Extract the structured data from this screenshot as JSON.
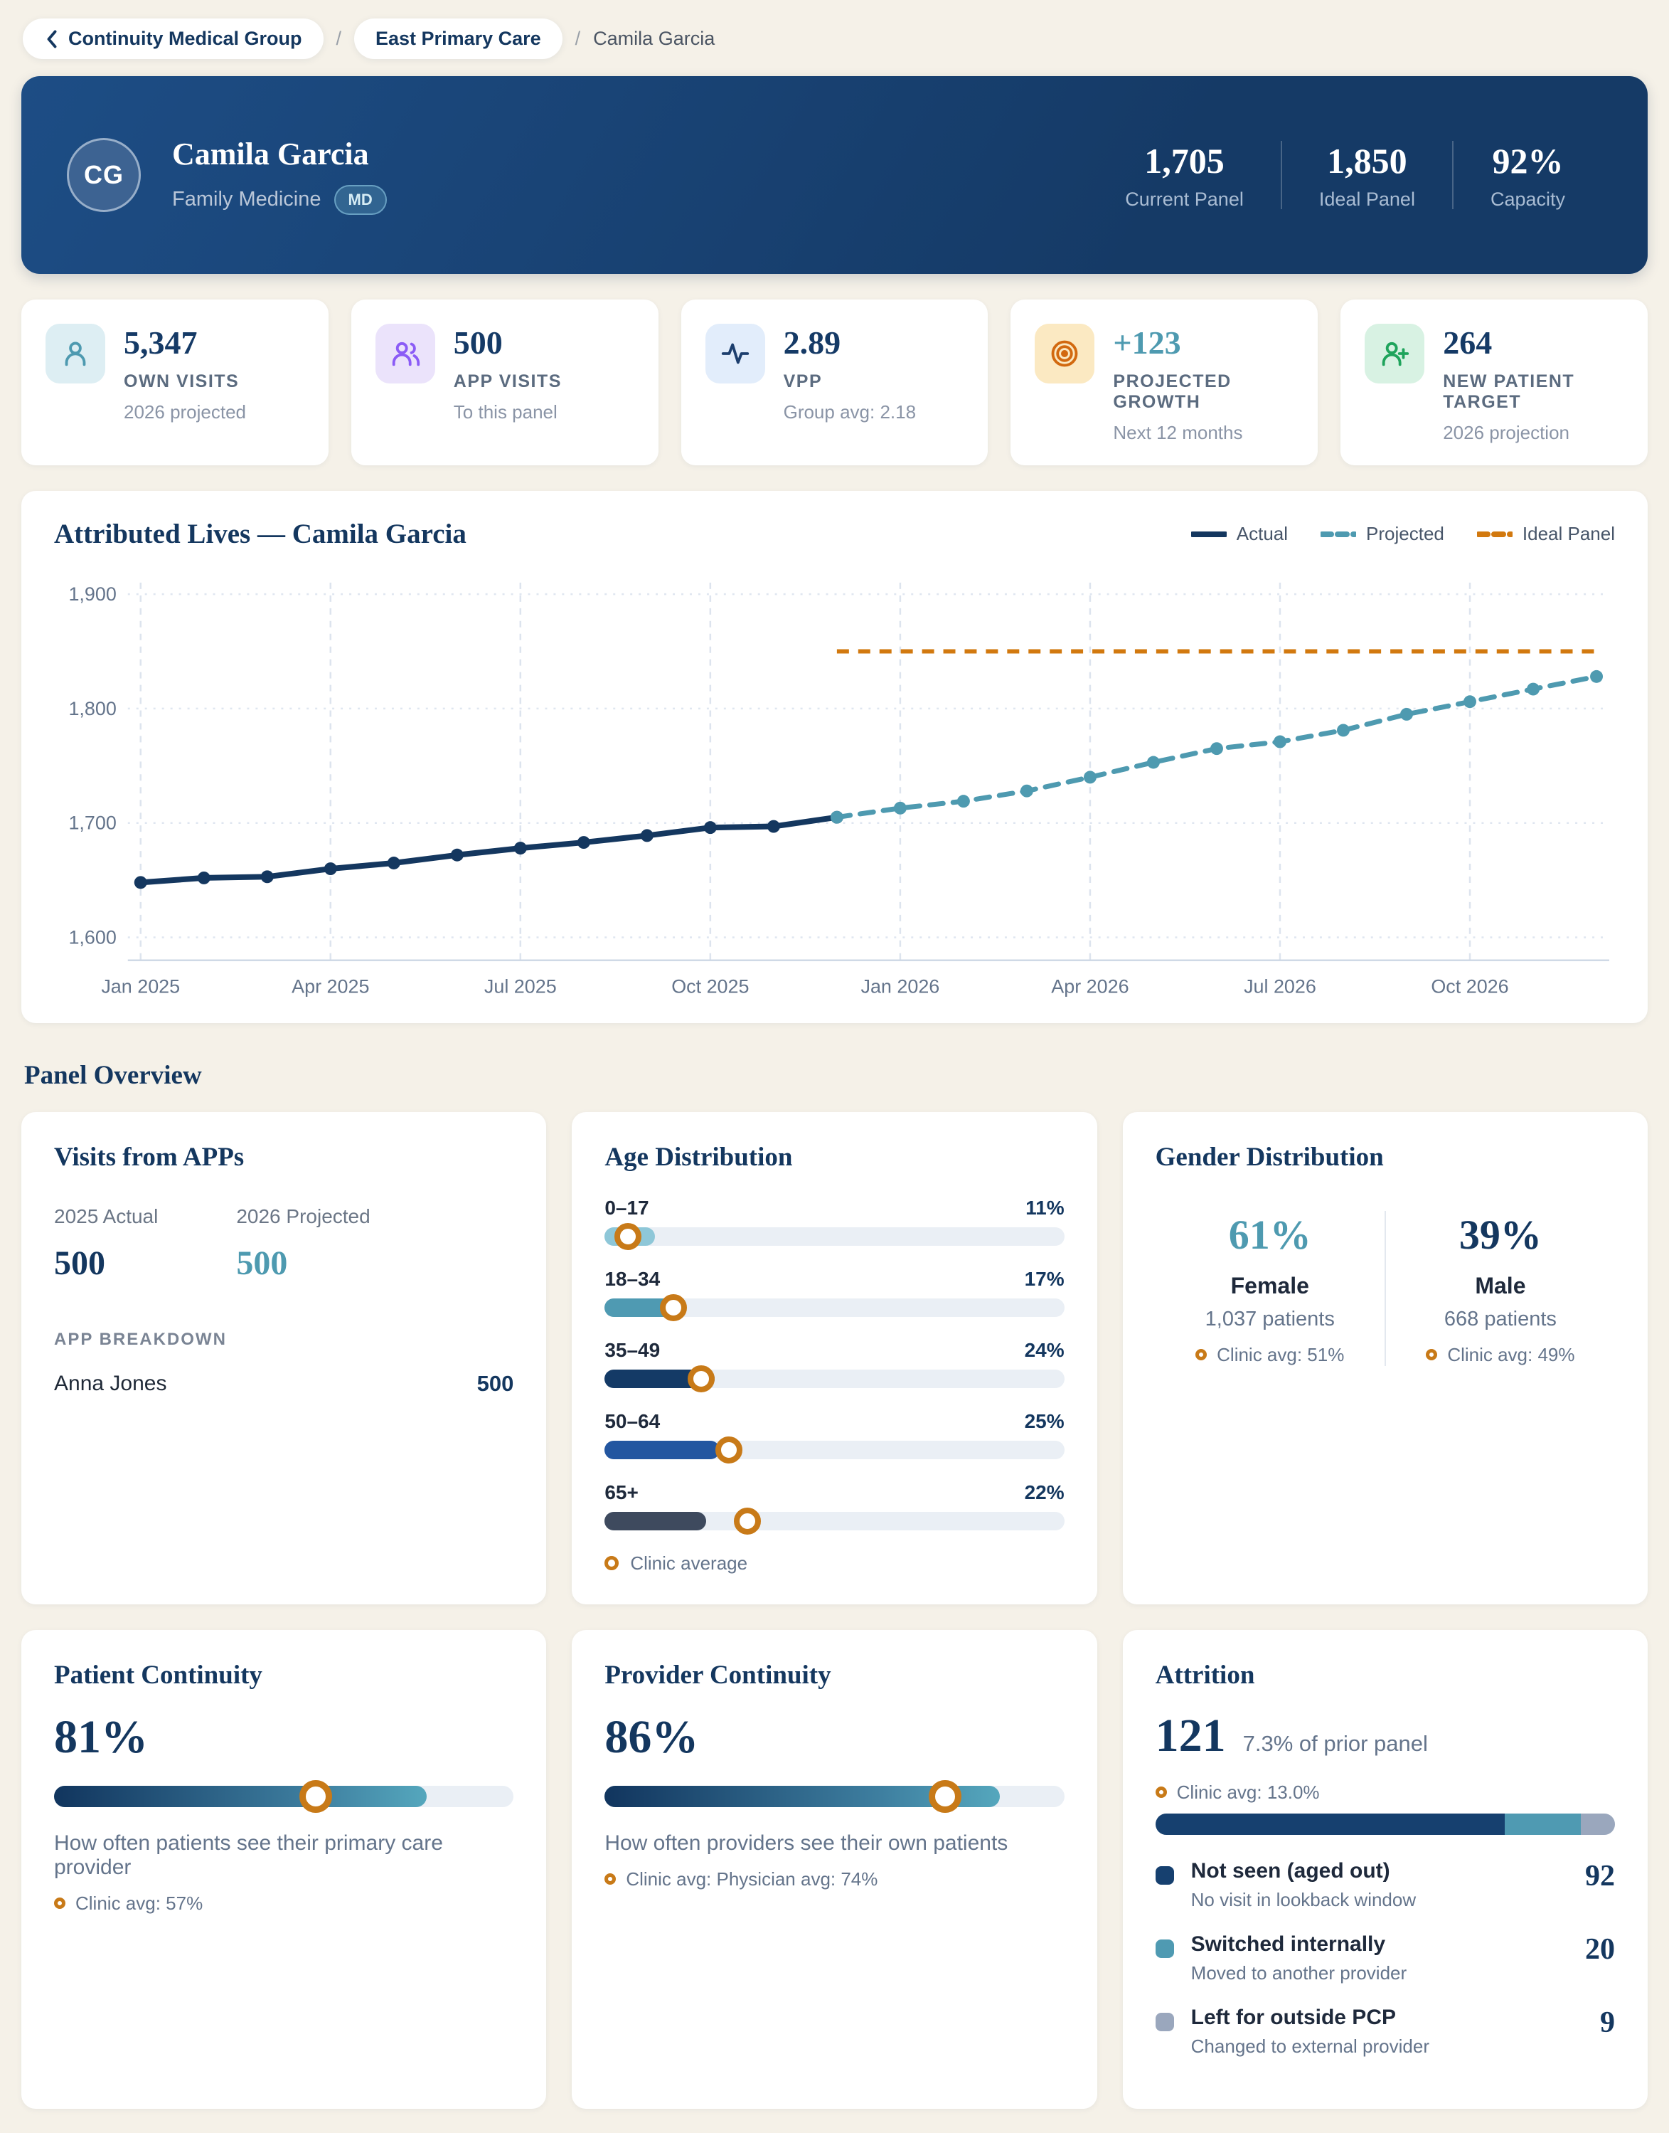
{
  "colors": {
    "navy": "#14375f",
    "teal": "#4e9ab0",
    "orange": "#d2790f",
    "marker_ring": "#c87a18",
    "page_bg": "#f5f1e8",
    "track": "#eaeff5"
  },
  "breadcrumb": {
    "back_label": "Continuity Medical Group",
    "clinic_label": "East Primary Care",
    "separator": "/",
    "current": "Camila Garcia"
  },
  "header": {
    "initials": "CG",
    "name": "Camila Garcia",
    "specialty": "Family Medicine",
    "credential": "MD",
    "stats": [
      {
        "value": "1,705",
        "label": "Current Panel"
      },
      {
        "value": "1,850",
        "label": "Ideal Panel"
      },
      {
        "value": "92%",
        "label": "Capacity"
      }
    ]
  },
  "kpis": [
    {
      "icon": "user-icon",
      "value": "5,347",
      "label": "OWN VISITS",
      "sub": "2026 projected",
      "icon_bg": "#ddeef3",
      "icon_color": "#4e9ab0",
      "value_color": "#153a66"
    },
    {
      "icon": "users-icon",
      "value": "500",
      "label": "APP VISITS",
      "sub": "To this panel",
      "icon_bg": "#ebe3fb",
      "icon_color": "#8b5cf6",
      "value_color": "#153a66"
    },
    {
      "icon": "activity-icon",
      "value": "2.89",
      "label": "VPP",
      "sub": "Group avg: 2.18",
      "icon_bg": "#e2edfb",
      "icon_color": "#1d3f6e",
      "value_color": "#153a66"
    },
    {
      "icon": "target-icon",
      "value": "+123",
      "label": "PROJECTED GROWTH",
      "sub": "Next 12 months",
      "icon_bg": "#fbe9c2",
      "icon_color": "#d2690f",
      "value_color": "#4e9ab0"
    },
    {
      "icon": "user-plus-icon",
      "value": "264",
      "label": "NEW PATIENT TARGET",
      "sub": "2026 projection",
      "icon_bg": "#d8f2e3",
      "icon_color": "#1fa45c",
      "value_color": "#153a66"
    }
  ],
  "chart_data": {
    "type": "line",
    "title": "Attributed Lives — Camila Garcia",
    "x_total_months": 24,
    "xtick_positions": [
      0,
      3,
      6,
      9,
      12,
      15,
      18,
      21
    ],
    "xtick_labels": [
      "Jan 2025",
      "Apr 2025",
      "Jul 2025",
      "Oct 2025",
      "Jan 2026",
      "Apr 2026",
      "Jul 2026",
      "Oct 2026"
    ],
    "ylim": [
      1580,
      1915
    ],
    "yticks": [
      1600,
      1700,
      1800,
      1900
    ],
    "ytick_labels": [
      "1,600",
      "1,700",
      "1,800",
      "1,900"
    ],
    "grid": true,
    "legend_position": "top-right",
    "series": [
      {
        "name": "Actual",
        "color": "#14375f",
        "style": "solid",
        "x_start": 0,
        "values": [
          1648,
          1652,
          1653,
          1660,
          1665,
          1672,
          1678,
          1683,
          1689,
          1696,
          1697,
          1705
        ]
      },
      {
        "name": "Projected",
        "color": "#4e9ab0",
        "style": "dashed",
        "x_start": 11,
        "values": [
          1705,
          1713,
          1719,
          1728,
          1740,
          1753,
          1765,
          1771,
          1781,
          1795,
          1806,
          1817,
          1828
        ]
      },
      {
        "name": "Ideal Panel",
        "color": "#d2790f",
        "style": "dashed",
        "x_start": 11,
        "x_end": 23,
        "constant": 1850,
        "markers": false
      }
    ]
  },
  "panel_overview": {
    "section_title": "Panel Overview",
    "visits_from_apps": {
      "title": "Visits from APPs",
      "columns": [
        {
          "label": "2025 Actual",
          "value": "500",
          "color": "#14375f"
        },
        {
          "label": "2026 Projected",
          "value": "500",
          "color": "#4e9ab0"
        }
      ],
      "breakdown_label": "APP BREAKDOWN",
      "breakdown": [
        {
          "name": "Anna Jones",
          "value": "500"
        }
      ]
    },
    "age_distribution": {
      "title": "Age Distribution",
      "legend": "Clinic average",
      "rows": [
        {
          "label": "0–17",
          "pct": 11,
          "clinic_avg_pct": 5,
          "color": "#8ec7d8"
        },
        {
          "label": "18–34",
          "pct": 17,
          "clinic_avg_pct": 15,
          "color": "#4f9ab2"
        },
        {
          "label": "35–49",
          "pct": 24,
          "clinic_avg_pct": 21,
          "color": "#143a66"
        },
        {
          "label": "50–64",
          "pct": 25,
          "clinic_avg_pct": 27,
          "color": "#2356a0"
        },
        {
          "label": "65+",
          "pct": 22,
          "clinic_avg_pct": 31,
          "color": "#3e4a5e"
        }
      ]
    },
    "gender_distribution": {
      "title": "Gender Distribution",
      "groups": [
        {
          "pct": "61%",
          "label": "Female",
          "patients": "1,037 patients",
          "clinic_avg": "Clinic avg: 51%",
          "color": "#4e9ab0"
        },
        {
          "pct": "39%",
          "label": "Male",
          "patients": "668 patients",
          "clinic_avg": "Clinic avg: 49%",
          "color": "#14375f"
        }
      ]
    },
    "patient_continuity": {
      "title": "Patient Continuity",
      "pct_label": "81%",
      "pct": 81,
      "desc": "How often patients see their primary care provider",
      "clinic_avg": "Clinic avg: 57%",
      "clinic_avg_pct": 57
    },
    "provider_continuity": {
      "title": "Provider Continuity",
      "pct_label": "86%",
      "pct": 86,
      "desc": "How often providers see their own patients",
      "clinic_avg": "Clinic avg: Physician avg: 74%",
      "clinic_avg_pct": 74
    },
    "attrition": {
      "title": "Attrition",
      "value": "121",
      "sub": "7.3% of prior panel",
      "clinic_avg": "Clinic avg: 13.0%",
      "total": 121,
      "items": [
        {
          "label": "Not seen (aged out)",
          "desc": "No visit in lookback window",
          "value": 92,
          "color": "#16406f"
        },
        {
          "label": "Switched internally",
          "desc": "Moved to another provider",
          "value": 20,
          "color": "#4f9ab2"
        },
        {
          "label": "Left for outside PCP",
          "desc": "Changed to external provider",
          "value": 9,
          "color": "#9aa7bd"
        }
      ]
    }
  }
}
